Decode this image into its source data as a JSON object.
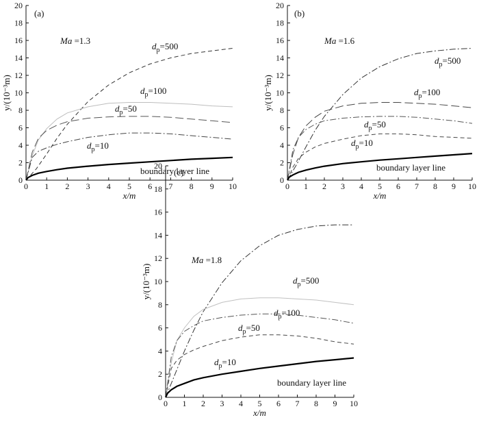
{
  "chart_data": [
    {
      "type": "line",
      "panel_label": "(a)",
      "ma_label": "Ma",
      "ma_value": "=1.3",
      "xlabel": "x/m",
      "ylabel": "y/(10⁻³m)",
      "xlim": [
        0,
        10
      ],
      "ylim": [
        0,
        20
      ],
      "xticks": [
        "0",
        "1",
        "2",
        "3",
        "4",
        "5",
        "6",
        "7",
        "8",
        "9",
        "10"
      ],
      "yticks": [
        "0",
        "2",
        "4",
        "6",
        "8",
        "10",
        "12",
        "14",
        "16",
        "18",
        "20"
      ],
      "series": [
        {
          "label": "=500",
          "style": "dashed",
          "color": "#333333",
          "x": [
            0,
            0.5,
            1,
            1.5,
            2,
            3,
            4,
            5,
            6,
            7,
            8,
            9,
            10
          ],
          "y": [
            0,
            1.3,
            3.0,
            4.8,
            6.4,
            9.0,
            10.9,
            12.3,
            13.3,
            14.0,
            14.5,
            14.8,
            15.1
          ]
        },
        {
          "label": "=100",
          "style": "solid-light",
          "color": "#bdbdbd",
          "x": [
            0,
            0.3,
            0.6,
            1,
            1.5,
            2,
            3,
            4,
            5,
            6,
            7,
            8,
            9,
            10
          ],
          "y": [
            0,
            2.8,
            4.6,
            5.9,
            7.0,
            7.7,
            8.4,
            8.8,
            8.9,
            8.9,
            8.8,
            8.7,
            8.5,
            8.4
          ]
        },
        {
          "label": "=50",
          "style": "long-dash",
          "color": "#555555",
          "x": [
            0,
            0.3,
            0.6,
            1,
            1.5,
            2,
            3,
            4,
            5,
            6,
            7,
            8,
            9,
            10
          ],
          "y": [
            0,
            3.2,
            4.8,
            5.7,
            6.3,
            6.7,
            7.1,
            7.25,
            7.3,
            7.3,
            7.2,
            7.0,
            6.8,
            6.6
          ]
        },
        {
          "label": "=10",
          "style": "dash-dot",
          "color": "#444444",
          "x": [
            0,
            0.3,
            0.6,
            1,
            1.5,
            2,
            3,
            4,
            5,
            6,
            7,
            8,
            9,
            10
          ],
          "y": [
            0,
            2.6,
            3.3,
            3.7,
            4.1,
            4.4,
            4.9,
            5.2,
            5.4,
            5.4,
            5.3,
            5.1,
            4.9,
            4.7
          ]
        },
        {
          "label": "boundary layer line",
          "style": "bold",
          "color": "#000000",
          "x": [
            0,
            0.1,
            0.3,
            0.6,
            1,
            1.5,
            2,
            3,
            4,
            5,
            6,
            7,
            8,
            9,
            10
          ],
          "y": [
            0,
            0.3,
            0.55,
            0.8,
            1.0,
            1.2,
            1.37,
            1.6,
            1.8,
            1.95,
            2.1,
            2.25,
            2.4,
            2.5,
            2.6
          ]
        }
      ]
    },
    {
      "type": "line",
      "panel_label": "(b)",
      "ma_label": "Ma",
      "ma_value": "=1.6",
      "xlabel": "x/m",
      "ylabel": "y/(10⁻³m)",
      "xlim": [
        0,
        10
      ],
      "ylim": [
        0,
        20
      ],
      "xticks": [
        "0",
        "1",
        "2",
        "3",
        "4",
        "5",
        "6",
        "7",
        "8",
        "9",
        "10"
      ],
      "yticks": [
        "0",
        "2",
        "4",
        "6",
        "8",
        "10",
        "12",
        "14",
        "16",
        "18",
        "20"
      ],
      "series": [
        {
          "label": "=500",
          "style": "dash-dot",
          "color": "#333333",
          "x": [
            0,
            0.5,
            1,
            1.5,
            2,
            3,
            4,
            5,
            6,
            7,
            8,
            9,
            10
          ],
          "y": [
            0,
            1.8,
            3.8,
            5.7,
            7.3,
            9.8,
            11.7,
            13.0,
            13.9,
            14.5,
            14.8,
            15.0,
            15.1
          ]
        },
        {
          "label": "=100",
          "style": "long-dash",
          "color": "#444444",
          "x": [
            0,
            0.3,
            0.6,
            1,
            1.5,
            2,
            3,
            4,
            5,
            6,
            7,
            8,
            9,
            10
          ],
          "y": [
            0,
            3.0,
            4.9,
            6.2,
            7.2,
            7.9,
            8.5,
            8.8,
            8.9,
            8.9,
            8.8,
            8.7,
            8.5,
            8.3
          ]
        },
        {
          "label": "=50",
          "style": "dash-dot",
          "color": "#555555",
          "x": [
            0,
            0.3,
            0.6,
            1,
            1.5,
            2,
            3,
            4,
            5,
            6,
            7,
            8,
            9,
            10
          ],
          "y": [
            0,
            3.5,
            4.9,
            5.8,
            6.4,
            6.8,
            7.1,
            7.25,
            7.3,
            7.3,
            7.2,
            7.0,
            6.8,
            6.5
          ]
        },
        {
          "label": "=10",
          "style": "dashed",
          "color": "#444444",
          "x": [
            0,
            0.3,
            0.6,
            1,
            1.5,
            2,
            3,
            4,
            5,
            6,
            7,
            8,
            9,
            10
          ],
          "y": [
            0,
            1.5,
            2.5,
            3.2,
            3.8,
            4.2,
            4.7,
            5.1,
            5.3,
            5.3,
            5.2,
            5.0,
            4.9,
            4.8
          ]
        },
        {
          "label": "boundary layer line",
          "style": "bold",
          "color": "#000000",
          "x": [
            0,
            0.1,
            0.3,
            0.6,
            1,
            1.5,
            2,
            3,
            4,
            5,
            6,
            7,
            8,
            9,
            10
          ],
          "y": [
            0,
            0.35,
            0.6,
            0.9,
            1.15,
            1.4,
            1.6,
            1.9,
            2.1,
            2.3,
            2.45,
            2.6,
            2.75,
            2.9,
            3.05
          ]
        }
      ]
    },
    {
      "type": "line",
      "panel_label": "(c)",
      "ma_label": "Ma",
      "ma_value": "=1.8",
      "xlabel": "x/m",
      "ylabel": "y/(10⁻³m)",
      "xlim": [
        0,
        10
      ],
      "ylim": [
        0,
        20
      ],
      "xticks": [
        "0",
        "1",
        "2",
        "3",
        "4",
        "5",
        "6",
        "7",
        "8",
        "9",
        "10"
      ],
      "yticks": [
        "0",
        "2",
        "4",
        "6",
        "8",
        "10",
        "12",
        "14",
        "16",
        "18",
        "20"
      ],
      "series": [
        {
          "label": "=500",
          "style": "dash-dot",
          "color": "#333333",
          "x": [
            0,
            0.5,
            1,
            1.5,
            2,
            3,
            4,
            5,
            6,
            7,
            8,
            9,
            10
          ],
          "y": [
            0,
            2.0,
            4.0,
            5.8,
            7.4,
            9.9,
            11.8,
            13.1,
            14.0,
            14.5,
            14.8,
            14.9,
            14.9
          ]
        },
        {
          "label": "=100",
          "style": "solid-light",
          "color": "#c0c0c0",
          "x": [
            0,
            0.3,
            0.6,
            1,
            1.5,
            2,
            3,
            4,
            5,
            6,
            7,
            8,
            9,
            10
          ],
          "y": [
            0,
            3.0,
            4.9,
            6.0,
            7.0,
            7.6,
            8.2,
            8.5,
            8.6,
            8.6,
            8.5,
            8.4,
            8.2,
            8.0
          ]
        },
        {
          "label": "=50",
          "style": "dash-dot",
          "color": "#555555",
          "x": [
            0,
            0.3,
            0.6,
            1,
            1.5,
            2,
            3,
            4,
            5,
            6,
            7,
            8,
            9,
            10
          ],
          "y": [
            0,
            3.5,
            4.9,
            5.7,
            6.2,
            6.6,
            6.9,
            7.1,
            7.2,
            7.2,
            7.1,
            6.9,
            6.7,
            6.4
          ]
        },
        {
          "label": "=10",
          "style": "dashed",
          "color": "#444444",
          "x": [
            0,
            0.3,
            0.6,
            1,
            1.5,
            2,
            3,
            4,
            5,
            6,
            7,
            8,
            9,
            10
          ],
          "y": [
            0,
            2.5,
            3.2,
            3.7,
            4.1,
            4.4,
            4.9,
            5.2,
            5.4,
            5.4,
            5.3,
            5.1,
            4.8,
            4.6
          ]
        },
        {
          "label": "boundary layer line",
          "style": "bold",
          "color": "#000000",
          "x": [
            0,
            0.1,
            0.3,
            0.6,
            1,
            1.5,
            2,
            3,
            4,
            5,
            6,
            7,
            8,
            9,
            10
          ],
          "y": [
            0,
            0.35,
            0.65,
            0.95,
            1.2,
            1.5,
            1.7,
            2.0,
            2.25,
            2.5,
            2.7,
            2.9,
            3.1,
            3.25,
            3.4
          ]
        }
      ]
    }
  ]
}
